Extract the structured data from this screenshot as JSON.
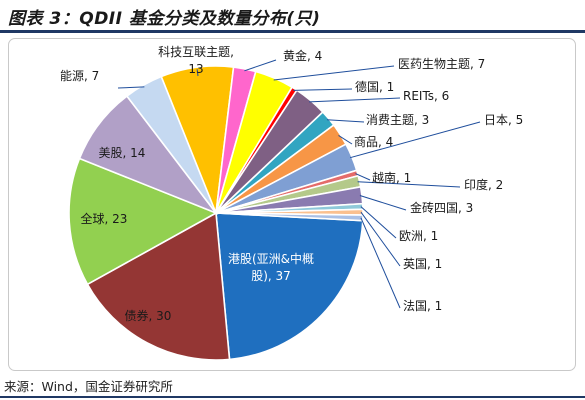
{
  "title": "图表 3：QDII 基金分类及数量分布(只)",
  "source": "来源：Wind，国金证券研究所",
  "chart_data": {
    "type": "pie",
    "title": "",
    "slices": [
      {
        "label": "港股(亚洲&中概股)",
        "value": 37,
        "color": "#1f6fbf"
      },
      {
        "label": "债券",
        "value": 30,
        "color": "#943634"
      },
      {
        "label": "全球",
        "value": 23,
        "color": "#92d050"
      },
      {
        "label": "美股",
        "value": 14,
        "color": "#b1a0c7"
      },
      {
        "label": "能源",
        "value": 7,
        "color": "#c5d9f1"
      },
      {
        "label": "科技互联主题",
        "value": 13,
        "color": "#ffc000"
      },
      {
        "label": "黄金",
        "value": 4,
        "color": "#ff66cc"
      },
      {
        "label": "医药生物主题",
        "value": 7,
        "color": "#ffff00"
      },
      {
        "label": "德国",
        "value": 1,
        "color": "#ff0000"
      },
      {
        "label": "REITs",
        "value": 6,
        "color": "#7f6084"
      },
      {
        "label": "消费主题",
        "value": 3,
        "color": "#31a5c1"
      },
      {
        "label": "商品",
        "value": 4,
        "color": "#f79646"
      },
      {
        "label": "日本",
        "value": 5,
        "color": "#7f9fd3"
      },
      {
        "label": "越南",
        "value": 1,
        "color": "#e46c6a"
      },
      {
        "label": "印度",
        "value": 2,
        "color": "#b4c98a"
      },
      {
        "label": "金砖四国",
        "value": 3,
        "color": "#8a7bb0"
      },
      {
        "label": "欧洲",
        "value": 1,
        "color": "#8fc9da"
      },
      {
        "label": "英国",
        "value": 1,
        "color": "#fac08f"
      },
      {
        "label": "法国",
        "value": 1,
        "color": "#a9c0e6"
      }
    ]
  }
}
